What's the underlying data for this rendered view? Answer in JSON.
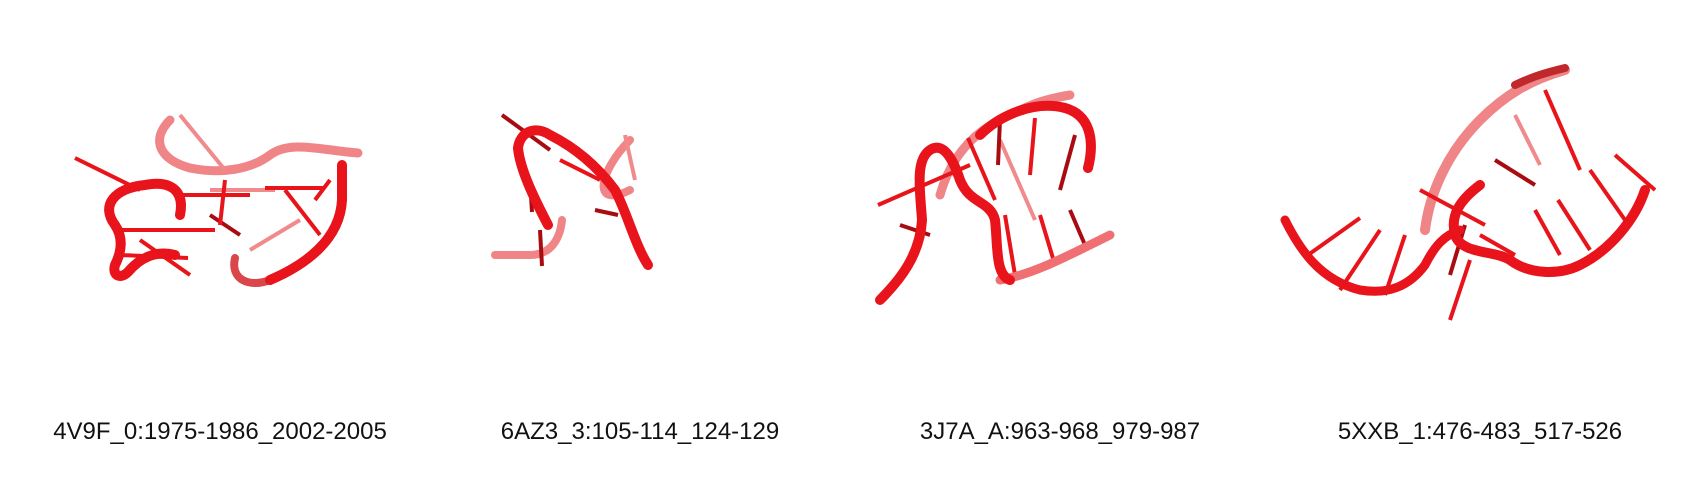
{
  "colors": {
    "backbone": "#e8131b",
    "backbone_dark": "#a80c10",
    "backbone_light": "#ef7a7c",
    "base": "#e8141a",
    "base_dark": "#9c0b0e",
    "base_light": "#f08a8c"
  },
  "panels": [
    {
      "id": "4V9F_0",
      "label": "4V9F_0:1975-1986_2002-2005"
    },
    {
      "id": "6AZ3_3",
      "label": "6AZ3_3:105-114_124-129"
    },
    {
      "id": "3J7A_A",
      "label": "3J7A_A:963-968_979-987"
    },
    {
      "id": "5XXB_1",
      "label": "5XXB_1:476-483_517-526"
    }
  ]
}
